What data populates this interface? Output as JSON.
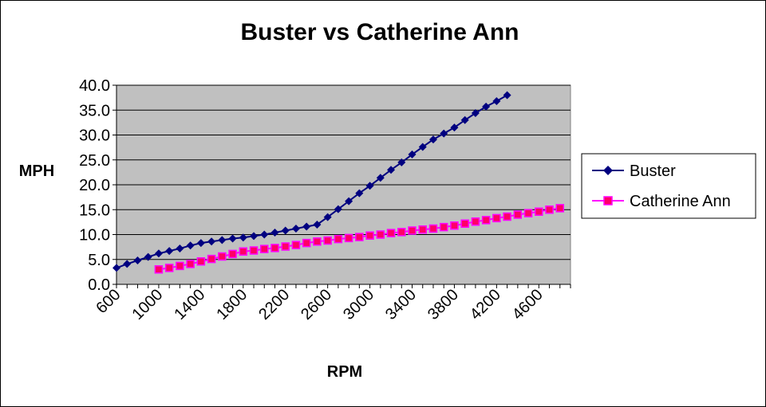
{
  "chart_data": {
    "type": "line",
    "title": "Buster vs Catherine Ann",
    "xlabel": "RPM",
    "ylabel": "MPH",
    "xlim": [
      600,
      4900
    ],
    "ylim": [
      0,
      40
    ],
    "x_tick_labels": [
      "600",
      "1000",
      "1400",
      "1800",
      "2200",
      "2600",
      "3000",
      "3400",
      "3800",
      "4200",
      "4600"
    ],
    "y_tick_labels": [
      "0.0",
      "5.0",
      "10.0",
      "15.0",
      "20.0",
      "25.0",
      "30.0",
      "35.0",
      "40.0"
    ],
    "grid": "horizontal",
    "plot_background": "#c0c0c0",
    "legend_position": "right",
    "series": [
      {
        "name": "Buster",
        "color": "#000080",
        "marker": "diamond",
        "x": [
          600,
          700,
          800,
          900,
          1000,
          1100,
          1200,
          1300,
          1400,
          1500,
          1600,
          1700,
          1800,
          1900,
          2000,
          2100,
          2200,
          2300,
          2400,
          2500,
          2600,
          2700,
          2800,
          2900,
          3000,
          3100,
          3200,
          3300,
          3400,
          3500,
          3600,
          3700,
          3800,
          3900,
          4000,
          4100,
          4200,
          4300
        ],
        "y": [
          3.3,
          4.1,
          4.8,
          5.5,
          6.2,
          6.7,
          7.2,
          7.8,
          8.3,
          8.6,
          8.9,
          9.2,
          9.4,
          9.7,
          10.0,
          10.4,
          10.8,
          11.2,
          11.6,
          12.0,
          13.5,
          15.1,
          16.7,
          18.3,
          19.8,
          21.4,
          23.0,
          24.5,
          26.1,
          27.6,
          29.1,
          30.3,
          31.5,
          33.0,
          34.4,
          35.7,
          36.8,
          38.0
        ]
      },
      {
        "name": "Catherine Ann",
        "color": "#ff00ff",
        "marker_fill": "#ff0066",
        "marker": "square",
        "x": [
          1000,
          1100,
          1200,
          1300,
          1400,
          1500,
          1600,
          1700,
          1800,
          1900,
          2000,
          2100,
          2200,
          2300,
          2400,
          2500,
          2600,
          2700,
          2800,
          2900,
          3000,
          3100,
          3200,
          3300,
          3400,
          3500,
          3600,
          3700,
          3800,
          3900,
          4000,
          4100,
          4200,
          4300,
          4400,
          4500,
          4600,
          4700,
          4800
        ],
        "y": [
          3.0,
          3.3,
          3.7,
          4.1,
          4.6,
          5.1,
          5.6,
          6.1,
          6.6,
          6.8,
          7.1,
          7.3,
          7.6,
          7.9,
          8.3,
          8.6,
          8.8,
          9.1,
          9.3,
          9.5,
          9.8,
          10.0,
          10.3,
          10.5,
          10.8,
          11.0,
          11.2,
          11.5,
          11.8,
          12.2,
          12.6,
          12.9,
          13.3,
          13.6,
          14.0,
          14.3,
          14.6,
          15.0,
          15.3
        ]
      }
    ]
  }
}
